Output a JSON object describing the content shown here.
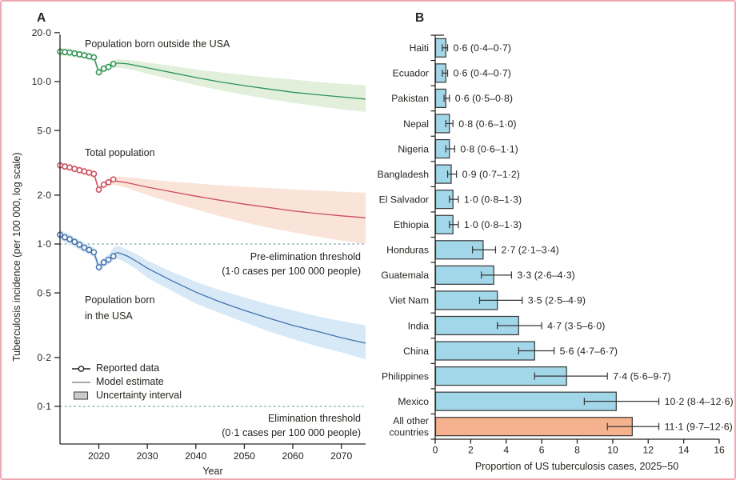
{
  "chart_data": [
    {
      "id": "A",
      "type": "line",
      "panel_label": "A",
      "xlabel": "Year",
      "ylabel": "Tuberculosis incidence (per 100 000, log scale)",
      "x_range": [
        2012,
        2075
      ],
      "x_ticks": [
        2020,
        2030,
        2040,
        2050,
        2060,
        2070
      ],
      "y_scale": "log",
      "y_ticks": [
        20,
        10,
        5,
        2,
        1,
        0.5,
        0.2,
        0.1
      ],
      "y_tick_labels": [
        "20·0",
        "10·0",
        "5·0",
        "2·0",
        "1·0",
        "0·5",
        "0·2",
        "0·1"
      ],
      "grid": false,
      "legend_position": "lower-left",
      "thresholds": [
        {
          "value": 1.0,
          "label": "Pre-elimination threshold",
          "sublabel": "(1·0 cases per 100 000 people)"
        },
        {
          "value": 0.1,
          "label": "Elimination threshold",
          "sublabel": "(0·1 cases per 100 000 people)"
        }
      ],
      "threshold_color": "#79a2a8",
      "legend": [
        {
          "label": "Reported data",
          "marker": "line-circle"
        },
        {
          "label": "Model estimate",
          "marker": "line"
        },
        {
          "label": "Uncertainty interval",
          "marker": "band"
        }
      ],
      "series": [
        {
          "name": "Population born outside the USA",
          "color": "#2d9457",
          "band_color": "#e1efdb",
          "reported": {
            "years": [
              2012,
              2013,
              2014,
              2015,
              2016,
              2017,
              2018,
              2019,
              2020,
              2021,
              2022,
              2023
            ],
            "values": [
              15.3,
              15.2,
              15.1,
              14.9,
              14.7,
              14.5,
              14.3,
              14.1,
              11.4,
              12.0,
              12.3,
              12.85
            ]
          },
          "model": {
            "years": [
              2022,
              2023,
              2024,
              2026,
              2028,
              2030,
              2035,
              2040,
              2045,
              2050,
              2055,
              2060,
              2065,
              2070,
              2075
            ],
            "values": [
              12.3,
              12.85,
              13.0,
              12.85,
              12.5,
              12.15,
              11.35,
              10.6,
              9.95,
              9.45,
              9.0,
              8.6,
              8.3,
              8.05,
              7.8
            ]
          },
          "band": {
            "years": [
              2012,
              2013,
              2014,
              2015,
              2016,
              2017,
              2018,
              2019,
              2020,
              2021,
              2022,
              2023,
              2024,
              2026,
              2028,
              2030,
              2035,
              2040,
              2045,
              2050,
              2055,
              2060,
              2065,
              2070,
              2075
            ],
            "hi": [
              16.2,
              16.1,
              16.0,
              15.8,
              15.6,
              15.4,
              15.1,
              14.9,
              12.1,
              12.7,
              13.0,
              13.5,
              13.7,
              13.6,
              13.4,
              13.1,
              12.5,
              11.9,
              11.4,
              11.0,
              10.6,
              10.3,
              9.95,
              9.7,
              9.5
            ],
            "lo": [
              14.5,
              14.4,
              14.3,
              14.2,
              14.0,
              13.8,
              13.6,
              13.4,
              10.8,
              11.4,
              11.7,
              12.1,
              12.2,
              12.0,
              11.6,
              11.2,
              10.3,
              9.5,
              8.85,
              8.3,
              7.8,
              7.4,
              7.05,
              6.75,
              6.5
            ]
          }
        },
        {
          "name": "Total population",
          "color": "#cb4c5e",
          "band_color": "#fae4da",
          "reported": {
            "years": [
              2012,
              2013,
              2014,
              2015,
              2016,
              2017,
              2018,
              2019,
              2020,
              2021,
              2022,
              2023
            ],
            "values": [
              3.05,
              3.0,
              2.96,
              2.9,
              2.85,
              2.8,
              2.75,
              2.7,
              2.16,
              2.32,
              2.4,
              2.5
            ]
          },
          "model": {
            "years": [
              2022,
              2023,
              2024,
              2026,
              2028,
              2030,
              2035,
              2040,
              2045,
              2050,
              2055,
              2060,
              2065,
              2070,
              2075
            ],
            "values": [
              2.4,
              2.45,
              2.43,
              2.38,
              2.31,
              2.24,
              2.1,
              1.97,
              1.86,
              1.76,
              1.68,
              1.6,
              1.54,
              1.49,
              1.45
            ]
          },
          "band": {
            "years": [
              2012,
              2013,
              2014,
              2015,
              2016,
              2017,
              2018,
              2019,
              2020,
              2021,
              2022,
              2023,
              2024,
              2026,
              2028,
              2030,
              2035,
              2040,
              2045,
              2050,
              2055,
              2060,
              2065,
              2070,
              2075
            ],
            "hi": [
              3.2,
              3.15,
              3.11,
              3.05,
              3.0,
              2.94,
              2.89,
              2.84,
              2.27,
              2.44,
              2.52,
              2.58,
              2.6,
              2.58,
              2.55,
              2.5,
              2.42,
              2.36,
              2.3,
              2.25,
              2.21,
              2.17,
              2.13,
              2.1,
              2.07
            ],
            "lo": [
              2.9,
              2.85,
              2.81,
              2.76,
              2.71,
              2.66,
              2.61,
              2.57,
              2.05,
              2.2,
              2.28,
              2.32,
              2.28,
              2.2,
              2.1,
              2.0,
              1.8,
              1.63,
              1.48,
              1.36,
              1.26,
              1.18,
              1.11,
              1.05,
              1.0
            ]
          }
        },
        {
          "name": "Population born in the USA",
          "display_lines": [
            "Population born",
            "in the USA"
          ],
          "color": "#4472af",
          "band_color": "#d7e9f6",
          "reported": {
            "years": [
              2012,
              2013,
              2014,
              2015,
              2016,
              2017,
              2018,
              2019,
              2020,
              2021,
              2022,
              2023
            ],
            "values": [
              1.14,
              1.1,
              1.07,
              1.03,
              0.99,
              0.95,
              0.92,
              0.89,
              0.72,
              0.77,
              0.8,
              0.84
            ]
          },
          "model": {
            "years": [
              2022,
              2023,
              2024,
              2026,
              2028,
              2030,
              2035,
              2040,
              2045,
              2050,
              2055,
              2060,
              2065,
              2070,
              2075
            ],
            "values": [
              0.8,
              0.87,
              0.885,
              0.84,
              0.775,
              0.71,
              0.595,
              0.505,
              0.44,
              0.39,
              0.35,
              0.315,
              0.29,
              0.265,
              0.245
            ]
          },
          "band": {
            "years": [
              2012,
              2013,
              2014,
              2015,
              2016,
              2017,
              2018,
              2019,
              2020,
              2021,
              2022,
              2023,
              2024,
              2026,
              2028,
              2030,
              2035,
              2040,
              2045,
              2050,
              2055,
              2060,
              2065,
              2070,
              2075
            ],
            "hi": [
              1.22,
              1.18,
              1.15,
              1.1,
              1.06,
              1.02,
              0.98,
              0.95,
              0.77,
              0.82,
              0.86,
              0.95,
              0.97,
              0.92,
              0.86,
              0.79,
              0.675,
              0.585,
              0.52,
              0.47,
              0.425,
              0.39,
              0.36,
              0.335,
              0.315
            ],
            "lo": [
              1.07,
              1.03,
              1.0,
              0.96,
              0.92,
              0.89,
              0.86,
              0.83,
              0.67,
              0.72,
              0.75,
              0.8,
              0.81,
              0.755,
              0.69,
              0.62,
              0.515,
              0.43,
              0.375,
              0.33,
              0.29,
              0.26,
              0.235,
              0.215,
              0.195
            ]
          }
        }
      ]
    },
    {
      "id": "B",
      "type": "bar",
      "panel_label": "B",
      "orientation": "horizontal",
      "xlabel": "Proportion of US tuberculosis cases, 2025–50",
      "xlim": [
        0,
        16
      ],
      "x_ticks": [
        0,
        2,
        4,
        6,
        8,
        10,
        12,
        14,
        16
      ],
      "categories": [
        "Haiti",
        "Ecuador",
        "Pakistan",
        "Nepal",
        "Nigeria",
        "Bangladesh",
        "El Salvador",
        "Ethiopia",
        "Honduras",
        "Guatemala",
        "Viet Nam",
        "India",
        "China",
        "Philippines",
        "Mexico",
        "All other\ncountries"
      ],
      "values": [
        0.6,
        0.6,
        0.6,
        0.8,
        0.8,
        0.9,
        1.0,
        1.0,
        2.7,
        3.3,
        3.5,
        4.7,
        5.6,
        7.4,
        10.2,
        11.1
      ],
      "ci_lo": [
        0.4,
        0.4,
        0.5,
        0.6,
        0.6,
        0.7,
        0.8,
        0.8,
        2.1,
        2.6,
        2.5,
        3.5,
        4.7,
        5.6,
        8.4,
        9.7
      ],
      "ci_hi": [
        0.7,
        0.7,
        0.8,
        1.0,
        1.1,
        1.2,
        1.3,
        1.3,
        3.4,
        4.3,
        4.9,
        6.0,
        6.7,
        9.7,
        12.6,
        12.6
      ],
      "value_labels": [
        "0·6 (0·4–0·7)",
        "0·6 (0·4–0·7)",
        "0·6 (0·5–0·8)",
        "0·8 (0·6–1·0)",
        "0·8 (0·6–1·1)",
        "0·9 (0·7–1·2)",
        "1·0 (0·8–1·3)",
        "1·0 (0·8–1·3)",
        "2·7 (2·1–3·4)",
        "3·3 (2·6–4·3)",
        "3·5 (2·5–4·9)",
        "4·7 (3·5–6·0)",
        "5·6 (4·7–6·7)",
        "7·4 (5·6–9·7)",
        "10·2 (8·4–12·6)",
        "11·1 (9·7–12·6)"
      ],
      "bar_color": "#a2d6e9",
      "last_bar_color": "#f6b28e",
      "bar_border": "#363636"
    }
  ]
}
